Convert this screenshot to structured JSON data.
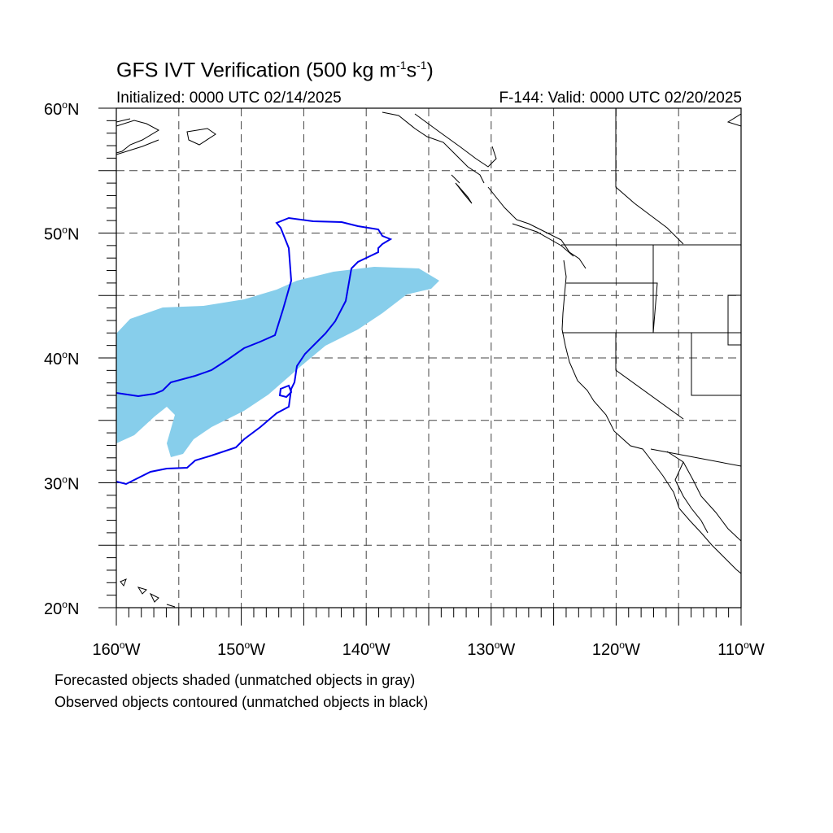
{
  "title": {
    "main": "GFS IVT Verification (500 kg m",
    "exp1": "-1",
    "mid": "s",
    "exp2": "-1",
    "end": ")"
  },
  "subtitle": {
    "left": "Initialized: 0000 UTC 02/14/2025",
    "right": "F-144: Valid: 0000 UTC 02/20/2025"
  },
  "map": {
    "lon_range": [
      -160,
      -110
    ],
    "lat_range": [
      20,
      60
    ],
    "lat_labels": [
      {
        "lat": 60,
        "text": "60"
      },
      {
        "lat": 50,
        "text": "50"
      },
      {
        "lat": 40,
        "text": "40"
      },
      {
        "lat": 30,
        "text": "30"
      },
      {
        "lat": 20,
        "text": "20"
      }
    ],
    "lat_suffix": "N",
    "lon_labels": [
      {
        "lon": -160,
        "text": "160"
      },
      {
        "lon": -150,
        "text": "150"
      },
      {
        "lon": -140,
        "text": "140"
      },
      {
        "lon": -130,
        "text": "130"
      },
      {
        "lon": -120,
        "text": "120"
      },
      {
        "lon": -110,
        "text": "110"
      }
    ],
    "lon_suffix": "W",
    "grid_spacing_deg": 5,
    "grid_style": "dashed",
    "colors": {
      "forecast_fill": "#87ceeb",
      "observed_contour": "#0000ee",
      "coastline": "#000000",
      "grid": "#444444"
    }
  },
  "captions": {
    "line1": "Forecasted objects shaded (unmatched objects in gray)",
    "line2": "Observed objects contoured (unmatched objects in black)"
  }
}
